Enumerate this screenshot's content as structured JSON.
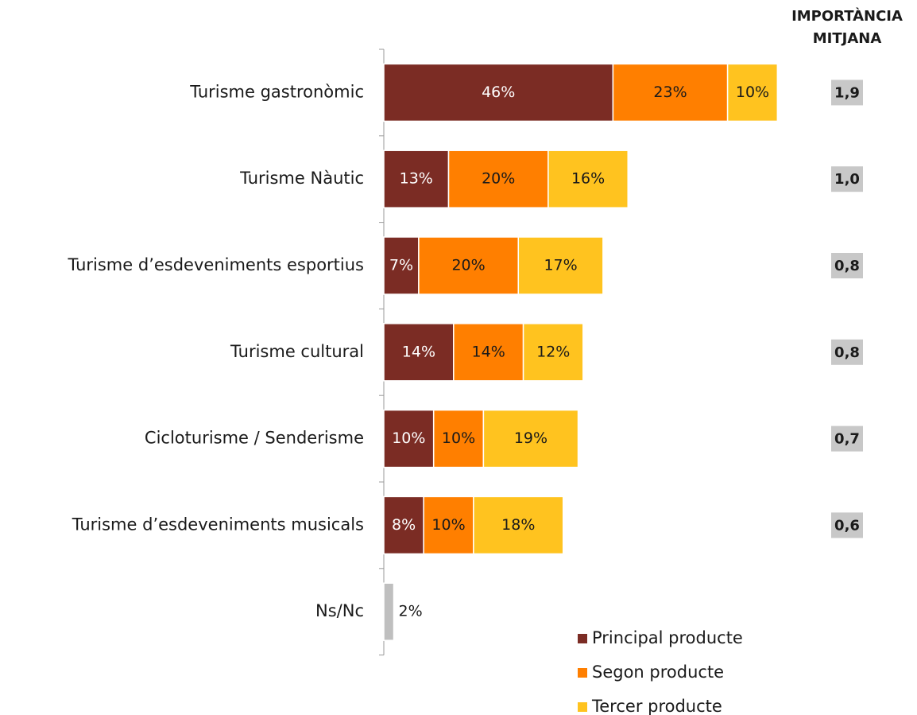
{
  "chart_data": {
    "type": "stacked_bar_horizontal",
    "categories": [
      "Turisme gastronòmic",
      "Turisme Nàutic",
      "Turisme d’esdeveniments esportius",
      "Turisme cultural",
      "Cicloturisme / Senderisme",
      "Turisme d’esdeveniments musicals",
      "Ns/Nc"
    ],
    "series": [
      {
        "name": "Principal producte",
        "color": "#7b2c24",
        "label_color": "#ffffff",
        "values": [
          46,
          13,
          7,
          14,
          10,
          8,
          null
        ],
        "value_labels": [
          "46%",
          "13%",
          "7%",
          "14%",
          "10%",
          "8%",
          null
        ]
      },
      {
        "name": "Segon producte",
        "color": "#ff7f00",
        "label_color": "#1a1a1a",
        "values": [
          23,
          20,
          20,
          14,
          10,
          10,
          null
        ],
        "value_labels": [
          "23%",
          "20%",
          "20%",
          "14%",
          "10%",
          "10%",
          null
        ]
      },
      {
        "name": "Tercer producte",
        "color": "#ffc31f",
        "label_color": "#1a1a1a",
        "values": [
          10,
          16,
          17,
          12,
          19,
          18,
          null
        ],
        "value_labels": [
          "10%",
          "16%",
          "17%",
          "12%",
          "19%",
          "18%",
          null
        ]
      },
      {
        "color": "#bfbfbf",
        "label_color": "#1a1a1a",
        "values": [
          null,
          null,
          null,
          null,
          null,
          null,
          2
        ],
        "value_labels": [
          null,
          null,
          null,
          null,
          null,
          null,
          "2%"
        ]
      }
    ],
    "xlim": [
      0,
      100
    ],
    "mean_importance": {
      "title_lines": [
        "IMPORTÀNCIA",
        "MITJANA"
      ],
      "values": [
        1.9,
        1.0,
        0.8,
        0.8,
        0.7,
        0.6,
        null
      ],
      "value_labels": [
        "1,9",
        "1,0",
        "0,8",
        "0,8",
        "0,7",
        "0,6",
        null
      ]
    },
    "legend": "bottom-right"
  }
}
